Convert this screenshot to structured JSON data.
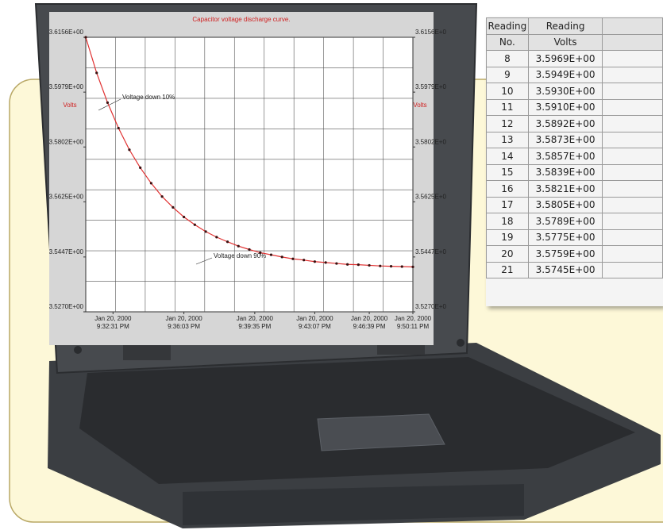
{
  "chart_data": {
    "type": "line",
    "title": "Capacitor voltage discharge curve.",
    "y_label": "Volts",
    "annotations": [
      "Voltage down 10%",
      "Voltage down 90%"
    ],
    "x": [
      0,
      2,
      4,
      6,
      8,
      10,
      12,
      14,
      16,
      18,
      20,
      22,
      24,
      26,
      28,
      30,
      32,
      34,
      36,
      38,
      40,
      42,
      44,
      46,
      48,
      50,
      52,
      54,
      56,
      58,
      60
    ],
    "series": [
      {
        "color": "#e03030",
        "marker_color": "#3a1010",
        "values": [
          3.6156,
          3.6041,
          3.5945,
          3.5863,
          3.5793,
          3.5735,
          3.5685,
          3.5642,
          3.5607,
          3.5576,
          3.5551,
          3.5529,
          3.5511,
          3.5496,
          3.5482,
          3.5471,
          3.5461,
          3.5454,
          3.5447,
          3.5441,
          3.5437,
          3.5432,
          3.5429,
          3.5426,
          3.5423,
          3.5422,
          3.542,
          3.5418,
          3.5417,
          3.5416,
          3.5415
        ]
      }
    ],
    "xlim": [
      0,
      60
    ],
    "xticks": [
      {
        "value": 5,
        "label": "Jan 20, 2000\n9:32:31 PM"
      },
      {
        "value": 18,
        "label": "Jan 20, 2000\n9:36:03 PM"
      },
      {
        "value": 31,
        "label": "Jan 20, 2000\n9:39:35 PM"
      },
      {
        "value": 42,
        "label": "Jan 20, 2000\n9:43:07 PM"
      },
      {
        "value": 52,
        "label": "Jan 20, 2000\n9:46:39 PM"
      },
      {
        "value": 60,
        "label": "Jan 20, 2000\n9:50:11 PM"
      }
    ],
    "ylim": [
      3.527,
      3.6156
    ],
    "yticks": [
      {
        "value": 3.6156,
        "label": "3.6156E+00"
      },
      {
        "value": 3.5979,
        "label": "3.5979E+00"
      },
      {
        "value": 3.5802,
        "label": "3.5802E+00"
      },
      {
        "value": 3.5625,
        "label": "3.5625E+00"
      },
      {
        "value": 3.5447,
        "label": "3.5447E+00"
      },
      {
        "value": 3.527,
        "label": "3.5270E+00"
      }
    ],
    "grid": true
  },
  "table": {
    "headers": [
      [
        "Reading",
        "No."
      ],
      [
        "Reading",
        "Volts"
      ]
    ],
    "rows": [
      [
        "8",
        "3.5969E+00"
      ],
      [
        "9",
        "3.5949E+00"
      ],
      [
        "10",
        "3.5930E+00"
      ],
      [
        "11",
        "3.5910E+00"
      ],
      [
        "12",
        "3.5892E+00"
      ],
      [
        "13",
        "3.5873E+00"
      ],
      [
        "14",
        "3.5857E+00"
      ],
      [
        "15",
        "3.5839E+00"
      ],
      [
        "16",
        "3.5821E+00"
      ],
      [
        "17",
        "3.5805E+00"
      ],
      [
        "18",
        "3.5789E+00"
      ],
      [
        "19",
        "3.5775E+00"
      ],
      [
        "20",
        "3.5759E+00"
      ],
      [
        "21",
        "3.5745E+00"
      ]
    ]
  }
}
